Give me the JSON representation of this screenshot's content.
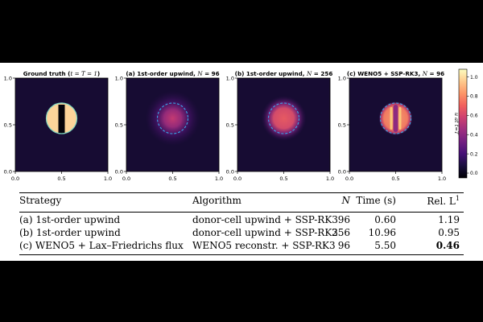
{
  "chart_data": {
    "type": "heatmap",
    "panels": [
      {
        "title_prefix": "Ground truth (",
        "title_math": "t = T = 1",
        "title_suffix": ")",
        "kind": "truth"
      },
      {
        "title_prefix": "(a) 1st-order upwind, ",
        "title_math": "N",
        "title_suffix": " = 96",
        "kind": "diffuse"
      },
      {
        "title_prefix": "(b) 1st-order upwind, ",
        "title_math": "N",
        "title_suffix": " = 256",
        "kind": "less_diffuse"
      },
      {
        "title_prefix": "(c) WENO5 + SSP-RK3, ",
        "title_math": "N",
        "title_suffix": " = 96",
        "kind": "weno"
      }
    ],
    "x_ticks": [
      "0.0",
      "0.5",
      "1.0"
    ],
    "y_ticks": [
      "1.0",
      "0.5",
      "0.0"
    ],
    "xlim": [
      0,
      1
    ],
    "ylim": [
      0,
      1
    ],
    "colorbar": {
      "label": "u at t=T",
      "ticks": [
        "1.0",
        "0.8",
        "0.6",
        "0.4",
        "0.2",
        "0.0"
      ],
      "range": [
        -0.05,
        1.08
      ]
    },
    "colormap": [
      "#000004",
      "#180f3d",
      "#440f76",
      "#721f81",
      "#9e2f7f",
      "#cd4071",
      "#f1605d",
      "#fd9668",
      "#feca8d",
      "#fcfdbf"
    ],
    "outline": {
      "color": "#39a7e6",
      "style": "dashed"
    }
  },
  "table": {
    "headers": [
      "Strategy",
      "Algorithm",
      "N",
      "Time (s)",
      "Rel. L",
      "1"
    ],
    "rows": [
      {
        "strategy": "(a) 1st-order upwind",
        "algorithm": "donor-cell upwind + SSP-RK3",
        "n": "96",
        "time": "0.60",
        "rel": "1.19"
      },
      {
        "strategy": "(b) 1st-order upwind",
        "algorithm": "donor-cell upwind + SSP-RK3",
        "n": "256",
        "time": "10.96",
        "rel": "0.95"
      },
      {
        "strategy": "(c) WENO5 + Lax–Friedrichs flux",
        "algorithm": "WENO5 reconstr. + SSP-RK3",
        "n": "96",
        "time": "5.50",
        "rel": "0.46"
      }
    ]
  }
}
